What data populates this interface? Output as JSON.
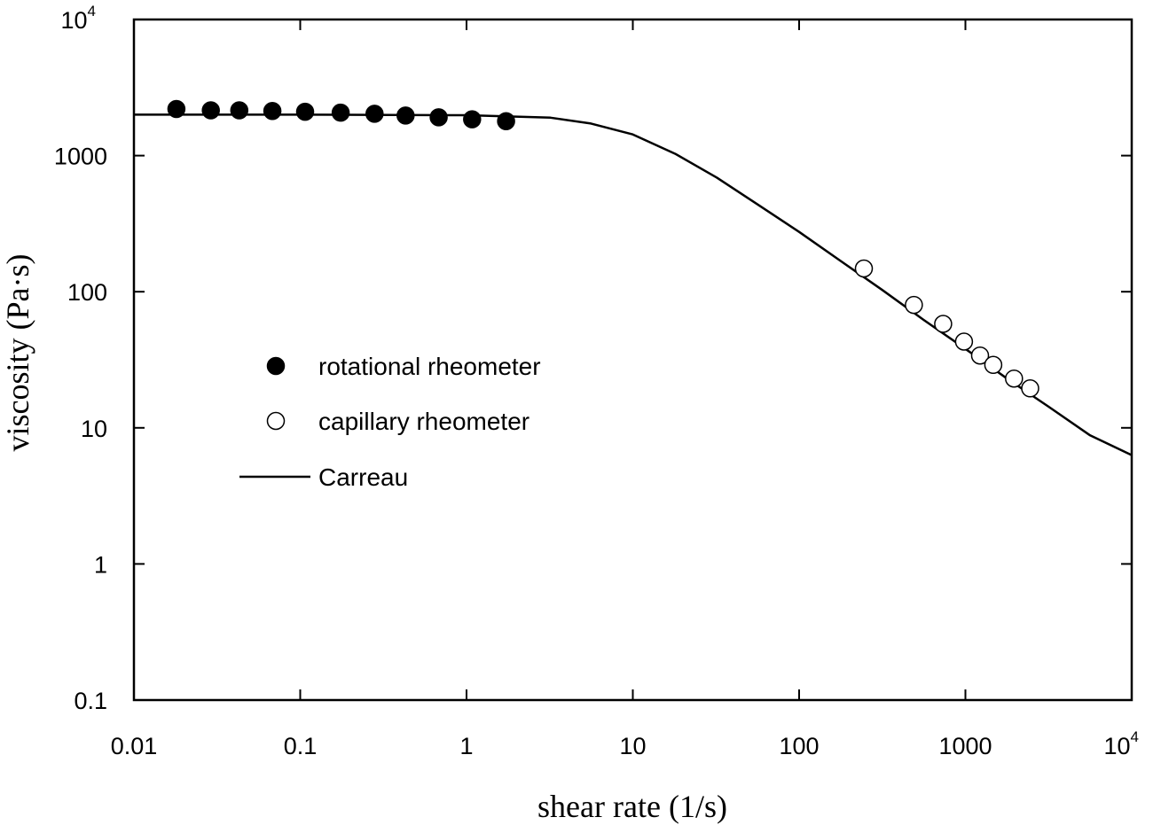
{
  "chart_data": {
    "type": "scatter",
    "x_scale": "log",
    "y_scale": "log",
    "xlim": [
      0.01,
      10000
    ],
    "ylim": [
      0.1,
      10000
    ],
    "xlabel": "shear rate (1/s)",
    "ylabel": "viscosity (Pa·s)",
    "grid": false,
    "legend_position": "middle-left",
    "x_ticks": [
      {
        "value": 0.01,
        "label": "0.01"
      },
      {
        "value": 0.1,
        "label": "0.1"
      },
      {
        "value": 1,
        "label": "1"
      },
      {
        "value": 10,
        "label": "10"
      },
      {
        "value": 100,
        "label": "100"
      },
      {
        "value": 1000,
        "label": "1000"
      },
      {
        "value": 10000,
        "label": "10",
        "sup": "4"
      }
    ],
    "y_ticks": [
      {
        "value": 0.1,
        "label": "0.1"
      },
      {
        "value": 1,
        "label": "1"
      },
      {
        "value": 10,
        "label": "10"
      },
      {
        "value": 100,
        "label": "100"
      },
      {
        "value": 1000,
        "label": "1000"
      },
      {
        "value": 10000,
        "label": "10",
        "sup": "4"
      }
    ],
    "series": [
      {
        "name": "rotational rheometer",
        "marker": "filled-circle",
        "x": [
          0.018,
          0.029,
          0.043,
          0.068,
          0.107,
          0.175,
          0.28,
          0.43,
          0.68,
          1.08,
          1.73
        ],
        "y": [
          2200,
          2150,
          2150,
          2130,
          2100,
          2070,
          2030,
          1970,
          1910,
          1850,
          1790
        ]
      },
      {
        "name": "capillary rheometer",
        "marker": "open-circle",
        "x": [
          245,
          490,
          735,
          980,
          1225,
          1470,
          1960,
          2450
        ],
        "y": [
          148,
          80,
          58,
          43,
          34,
          29,
          23,
          19.5
        ]
      },
      {
        "name": "Carreau",
        "marker": "line",
        "x": [
          0.01,
          0.1,
          1,
          3.2,
          5.6,
          10,
          18,
          32,
          56,
          100,
          178,
          316,
          562,
          1000,
          1778,
          3162,
          5623,
          10000
        ],
        "y": [
          2000,
          2000,
          1980,
          1900,
          1720,
          1430,
          1030,
          690,
          440,
          275,
          168,
          103,
          62,
          38,
          23,
          14.3,
          8.8,
          6.3
        ]
      }
    ]
  },
  "colors": {
    "background": "#ffffff",
    "ink": "#000000"
  }
}
